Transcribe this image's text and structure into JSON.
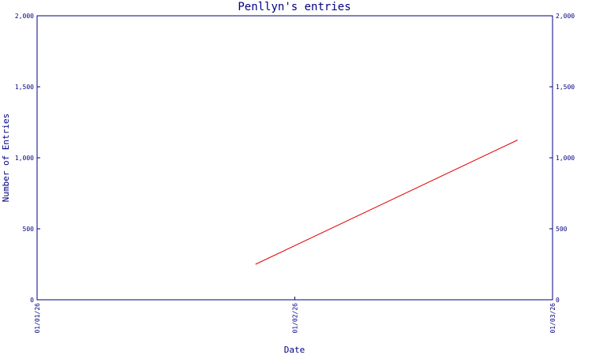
{
  "chart_data": {
    "type": "line",
    "title": "Penllyn's entries",
    "xlabel": "Date",
    "ylabel": "Number of Entries",
    "x_ticks": [
      "01/01/26",
      "01/02/26",
      "01/03/26"
    ],
    "y_ticks": [
      "0",
      "500",
      "1,000",
      "1,500",
      "2,000"
    ],
    "ylim": [
      0,
      2000
    ],
    "xlim": [
      "2026-01-01",
      "2026-03-01"
    ],
    "grid": false,
    "series": [
      {
        "x": [
          "2026-01-26",
          "2026-02-25"
        ],
        "y": [
          250,
          1125
        ],
        "color": "#e00000"
      }
    ],
    "colors": {
      "axis": "#000080",
      "text": "#000080"
    }
  }
}
